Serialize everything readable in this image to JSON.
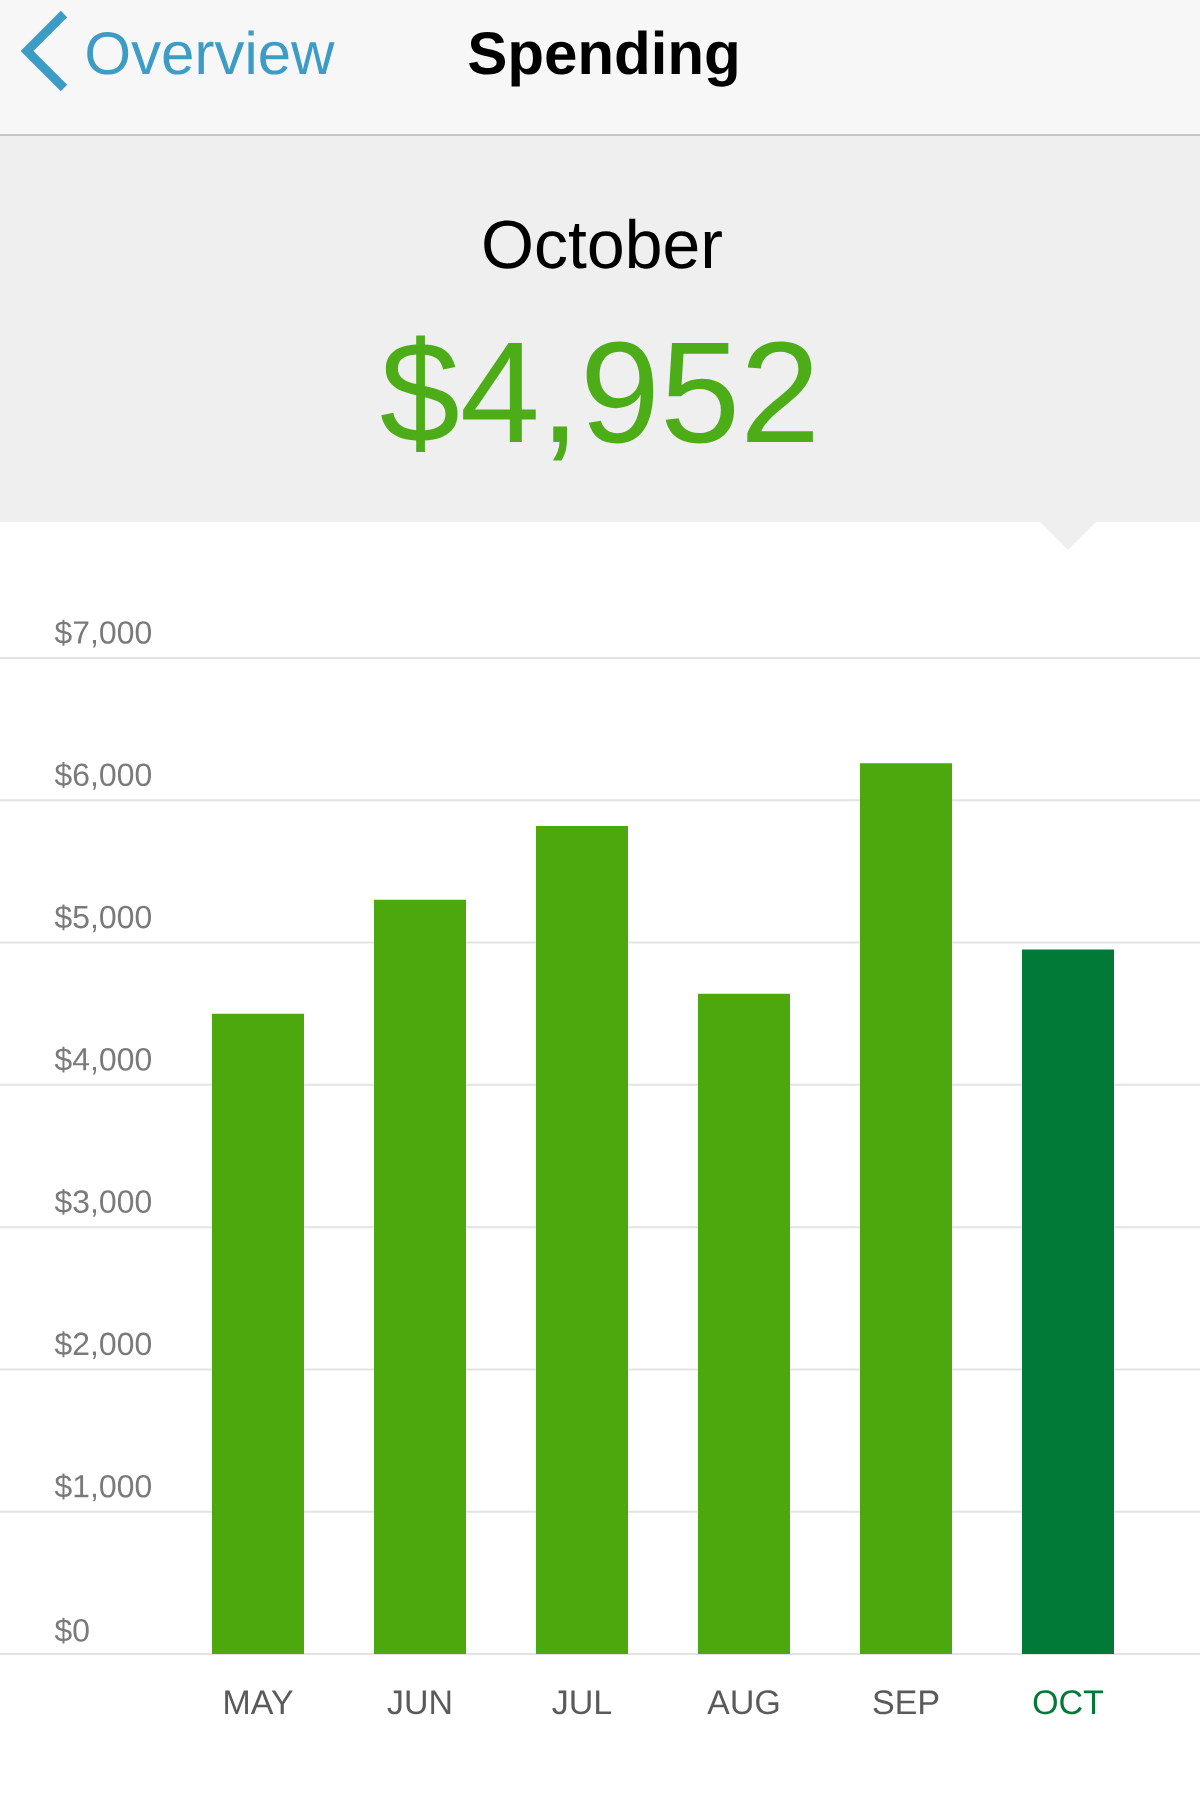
{
  "chart_data": {
    "type": "bar",
    "title": "Spending",
    "subtitle": "October",
    "annotations": [
      "Overview",
      "$4,952"
    ],
    "categories": [
      "MAY",
      "JUN",
      "JUL",
      "AUG",
      "SEP",
      "OCT"
    ],
    "values": [
      4500,
      5300,
      5820,
      4640,
      6260,
      4952
    ],
    "colors": [
      "#4ca80c",
      "#4ca80c",
      "#4ca80c",
      "#4ca80c",
      "#4ca80c",
      "#007a36"
    ],
    "ylim": [
      0,
      7000
    ],
    "yticks": [
      {
        "value": 0,
        "label": "$0"
      },
      {
        "value": 1000,
        "label": "$1,000"
      },
      {
        "value": 2000,
        "label": "$2,000"
      },
      {
        "value": 3000,
        "label": "$3,000"
      },
      {
        "value": 4000,
        "label": "$4,000"
      },
      {
        "value": 5000,
        "label": "$5,000"
      },
      {
        "value": 6000,
        "label": "$6,000"
      },
      {
        "value": 7000,
        "label": "$7,000"
      }
    ],
    "grid": "y"
  }
}
